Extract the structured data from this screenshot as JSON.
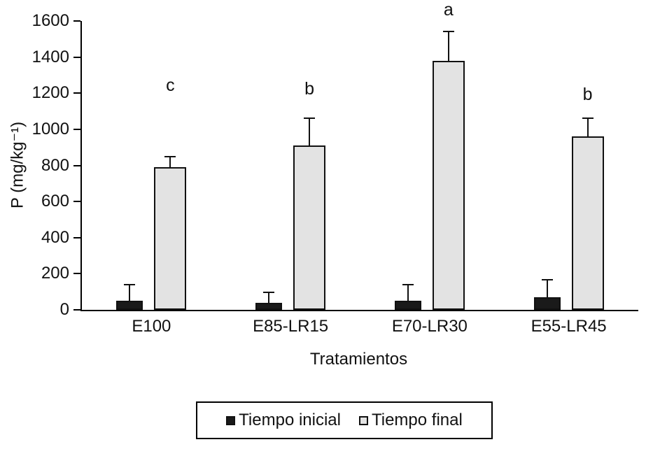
{
  "chart_data": {
    "type": "bar",
    "title": "",
    "xlabel": "Tratamientos",
    "ylabel": "P (mg/kg⁻¹)",
    "ylim": [
      0,
      1600
    ],
    "ytick_step": 200,
    "grid": false,
    "legend_position": "bottom",
    "categories": [
      "E100",
      "E85-LR15",
      "E70-LR30",
      "E55-LR45"
    ],
    "series": [
      {
        "name": "Tiempo inicial",
        "color": "#1a1a1a",
        "values": [
          50,
          40,
          50,
          70
        ],
        "error_up": [
          90,
          55,
          90,
          95
        ]
      },
      {
        "name": "Tiempo final",
        "color": "#e3e3e3",
        "values": [
          790,
          910,
          1380,
          960
        ],
        "error_up": [
          60,
          150,
          160,
          100
        ]
      }
    ],
    "significance_letters": [
      {
        "label": "c",
        "y": 1240
      },
      {
        "label": "b",
        "y": 1220
      },
      {
        "label": "a",
        "y": 1660
      },
      {
        "label": "b",
        "y": 1190
      }
    ]
  }
}
